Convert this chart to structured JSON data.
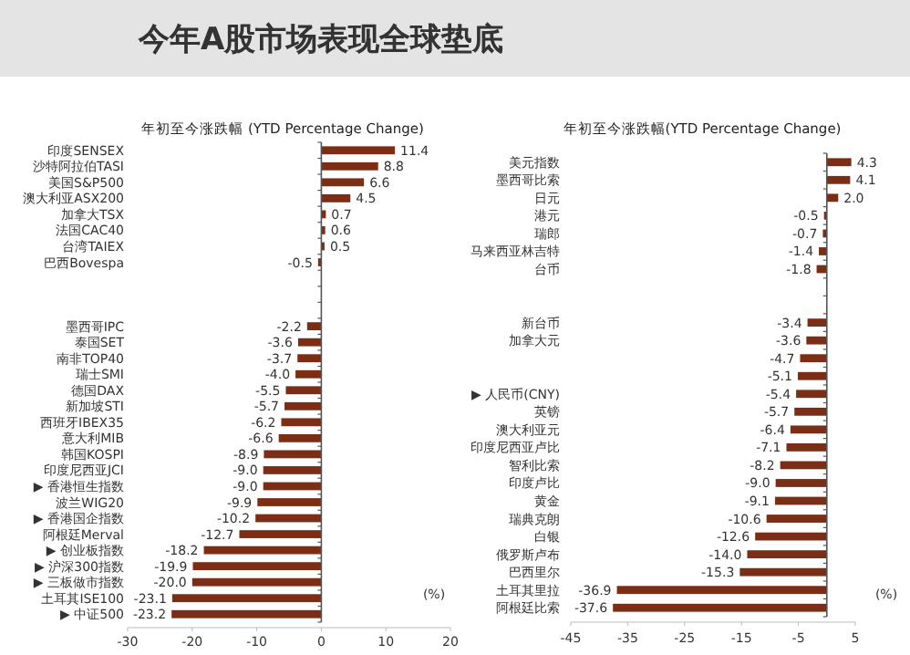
{
  "chart_data": [
    {
      "type": "bar",
      "orientation": "horizontal",
      "title": "今年A股市场表现全球垫底",
      "subtitle": "年初至今涨跌幅 (YTD Percentage Change)",
      "categories": [
        "印度SENSEX",
        "沙特阿拉伯TASI",
        "美国S&P500",
        "澳大利亚ASX200",
        "加拿大TSX",
        "法国CAC40",
        "台湾TAIEX",
        "巴西Bovespa",
        null,
        null,
        null,
        "墨西哥IPC",
        "泰国SET",
        "南非TOP40",
        "瑞士SMI",
        "德国DAX",
        "新加坡STI",
        "西班牙IBEX35",
        "意大利MIB",
        "韩国KOSPI",
        "印度尼西亚JCI",
        "▶ 香港恒生指数",
        "波兰WIG20",
        "▶ 香港国企指数",
        "阿根廷Merval",
        "▶ 创业板指数",
        "▶ 沪深300指数",
        "▶ 三板做市指数",
        "土耳其ISE100",
        "▶ 中证500"
      ],
      "values": [
        11.4,
        8.8,
        6.6,
        4.5,
        0.7,
        0.6,
        0.5,
        -0.5,
        null,
        null,
        null,
        -2.2,
        -3.6,
        -3.7,
        -4.0,
        -5.5,
        -5.7,
        -6.2,
        -6.6,
        -8.9,
        -9.0,
        -9.0,
        -9.9,
        -10.2,
        -12.7,
        -18.2,
        -19.9,
        -20.0,
        -23.1,
        -23.2
      ],
      "value_labels": [
        "11.4",
        "8.8",
        "6.6",
        "4.5",
        "0.7",
        "0.6",
        "0.5",
        "-0.5",
        null,
        null,
        null,
        "-2.2",
        "-3.6",
        "-3.7",
        "-4.0",
        "-5.5",
        "-5.7",
        "-6.2",
        "-6.6",
        "-8.9",
        "-9.0",
        "-9.0",
        "-9.9",
        "-10.2",
        "-12.7",
        "-18.2",
        "-19.9",
        "-20.0",
        "-23.1",
        "-23.2"
      ],
      "color": "#7a2e16",
      "xlim": [
        -30,
        20
      ],
      "xticks": [
        -30,
        -20,
        -10,
        0,
        10,
        20
      ],
      "annotations": [
        "(%)"
      ]
    },
    {
      "type": "bar",
      "orientation": "horizontal",
      "subtitle": "年初至今涨跌幅(YTD Percentage Change)",
      "categories": [
        "美元指数",
        "墨西哥比索",
        "日元",
        "港元",
        "瑞郎",
        "马来西亚林吉特",
        "台币",
        null,
        null,
        "新台币",
        "加拿大元",
        null,
        null,
        "▶ 人民币(CNY)",
        "英镑",
        "澳大利亚元",
        "印度尼西亚卢比",
        "智利比索",
        "印度卢比",
        "黄金",
        "瑞典克朗",
        "白银",
        "俄罗斯卢布",
        "巴西里尔",
        "土耳其里拉",
        "阿根廷比索"
      ],
      "values": [
        4.3,
        4.1,
        2.0,
        -0.5,
        -0.7,
        -1.4,
        -1.8,
        null,
        null,
        -3.4,
        -3.6,
        -4.7,
        -5.1,
        -5.4,
        -5.7,
        -6.4,
        -7.1,
        -8.2,
        -9.0,
        -9.1,
        -10.6,
        -12.6,
        -14.0,
        -15.3,
        -36.9,
        -37.6
      ],
      "value_labels": [
        "4.3",
        "4.1",
        "2.0",
        "-0.5",
        "-0.7",
        "-1.4",
        "-1.8",
        null,
        null,
        "-3.4",
        "-3.6",
        "-4.7",
        "-5.1",
        "-5.4",
        "-5.7",
        "-6.4",
        "-7.1",
        "-8.2",
        "-9.0",
        "-9.1",
        "-10.6",
        "-12.6",
        "-14.0",
        "-15.3",
        "-36.9",
        "-37.6"
      ],
      "color": "#7a2e16",
      "xlim": [
        -45,
        5
      ],
      "xticks": [
        -45,
        -35,
        -25,
        -15,
        -5,
        5
      ],
      "annotations": [
        "(%)"
      ]
    }
  ]
}
